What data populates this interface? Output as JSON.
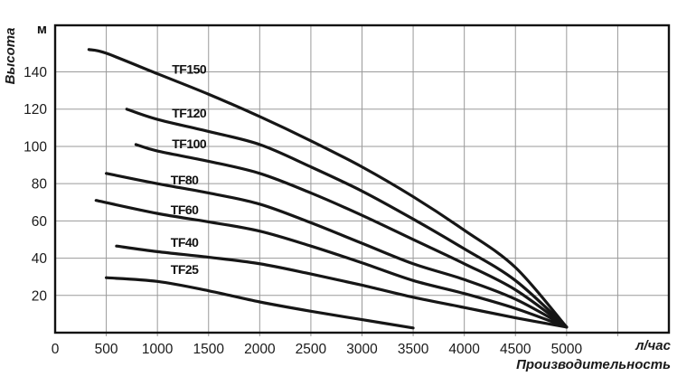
{
  "chart_data": {
    "type": "line",
    "title": "",
    "x_axis": {
      "unit_label": "л/час",
      "axis_name": "Производительность",
      "ticks": [
        0,
        500,
        1000,
        1500,
        2000,
        2500,
        3000,
        3500,
        4000,
        4500,
        5000
      ],
      "range": [
        0,
        6000
      ],
      "gridline_step": 500
    },
    "y_axis": {
      "unit_label": "м",
      "axis_name": "Высота",
      "ticks": [
        20,
        40,
        60,
        80,
        100,
        120,
        140
      ],
      "range": [
        0,
        165
      ],
      "gridline_step": 20
    },
    "grid": true,
    "legend_position": "inline-labels",
    "colors": {
      "line": "#161616",
      "grid": "#9a9a9a",
      "frame": "#111111",
      "background": "#ffffff"
    },
    "series": [
      {
        "name": "TF150",
        "label_pos": [
          1310,
          141.5
        ],
        "points": [
          [
            330,
            152
          ],
          [
            500,
            150
          ],
          [
            1000,
            139
          ],
          [
            1500,
            128
          ],
          [
            2000,
            116
          ],
          [
            2500,
            103
          ],
          [
            3000,
            89
          ],
          [
            3500,
            73
          ],
          [
            4000,
            55
          ],
          [
            4500,
            35
          ],
          [
            5000,
            3
          ]
        ]
      },
      {
        "name": "TF120",
        "label_pos": [
          1310,
          118
        ],
        "points": [
          [
            700,
            120
          ],
          [
            1000,
            114.5
          ],
          [
            1500,
            108
          ],
          [
            2000,
            101
          ],
          [
            2500,
            89
          ],
          [
            3000,
            76
          ],
          [
            3500,
            61
          ],
          [
            4000,
            45
          ],
          [
            4500,
            28
          ],
          [
            5000,
            3
          ]
        ]
      },
      {
        "name": "TF100",
        "label_pos": [
          1310,
          101.5
        ],
        "points": [
          [
            790,
            101
          ],
          [
            1000,
            97.5
          ],
          [
            1500,
            92
          ],
          [
            2000,
            85.5
          ],
          [
            2500,
            75
          ],
          [
            3000,
            63
          ],
          [
            3500,
            50
          ],
          [
            4000,
            37
          ],
          [
            4500,
            23
          ],
          [
            5000,
            3
          ]
        ]
      },
      {
        "name": "TF80",
        "label_pos": [
          1265,
          82
        ],
        "points": [
          [
            500,
            85.5
          ],
          [
            1000,
            80
          ],
          [
            1500,
            75
          ],
          [
            2000,
            69
          ],
          [
            2500,
            59
          ],
          [
            3000,
            48
          ],
          [
            3500,
            37
          ],
          [
            4000,
            28.5
          ],
          [
            4500,
            18
          ],
          [
            5000,
            3
          ]
        ]
      },
      {
        "name": "TF60",
        "label_pos": [
          1265,
          66
        ],
        "points": [
          [
            400,
            71
          ],
          [
            1000,
            64
          ],
          [
            1500,
            59.5
          ],
          [
            2000,
            54.5
          ],
          [
            2500,
            46.5
          ],
          [
            3000,
            37.5
          ],
          [
            3500,
            28
          ],
          [
            4000,
            21
          ],
          [
            4500,
            13
          ],
          [
            5000,
            3
          ]
        ]
      },
      {
        "name": "TF40",
        "label_pos": [
          1265,
          48.5
        ],
        "points": [
          [
            600,
            46.5
          ],
          [
            1000,
            43.5
          ],
          [
            1500,
            40.5
          ],
          [
            2000,
            37
          ],
          [
            2500,
            31.5
          ],
          [
            3000,
            25.5
          ],
          [
            3500,
            19
          ],
          [
            4000,
            13.5
          ],
          [
            4500,
            8
          ],
          [
            5000,
            3
          ]
        ]
      },
      {
        "name": "TF25",
        "label_pos": [
          1265,
          34
        ],
        "points": [
          [
            500,
            29.5
          ],
          [
            1000,
            27.5
          ],
          [
            1500,
            22.5
          ],
          [
            2000,
            16.5
          ],
          [
            2500,
            11.5
          ],
          [
            3000,
            7
          ],
          [
            3500,
            2.5
          ]
        ]
      }
    ]
  }
}
